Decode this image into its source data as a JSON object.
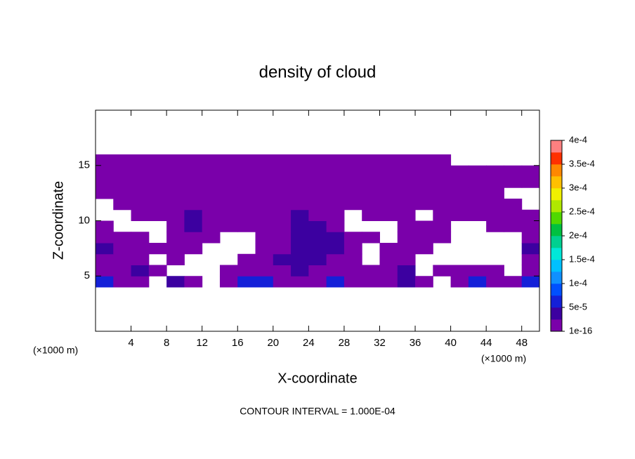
{
  "chart_data": {
    "type": "contour",
    "title": "density of cloud",
    "x_label": "X-coordinate",
    "y_label": "Z-coordinate",
    "x_unit": "(×1000 m)",
    "x_unit_right": "(×1000 m)",
    "footer": "CONTOUR INTERVAL = 1.000E-04",
    "xlim": [
      0,
      50
    ],
    "ylim": [
      0,
      20
    ],
    "xticks": [
      4,
      8,
      12,
      16,
      20,
      24,
      28,
      32,
      36,
      40,
      44,
      48
    ],
    "yticks": [
      5,
      10,
      15
    ],
    "xbins": [
      0,
      2,
      4,
      6,
      8,
      10,
      12,
      14,
      16,
      18,
      20,
      22,
      24,
      26,
      28,
      30,
      32,
      34,
      36,
      38,
      40,
      42,
      44,
      46,
      48,
      50
    ],
    "zbins": [
      4,
      5,
      6,
      7,
      8,
      9,
      10,
      11,
      12,
      13,
      14,
      15,
      16
    ],
    "z": [
      [
        7e-05,
        1e-05,
        1e-05,
        null,
        3e-05,
        1e-05,
        null,
        1e-05,
        7e-05,
        7e-05,
        1e-05,
        1e-05,
        1e-05,
        7e-05,
        1e-05,
        1e-05,
        1e-05,
        3e-05,
        1e-05,
        null,
        1e-05,
        7e-05,
        1e-05,
        1e-05,
        7e-05
      ],
      [
        1e-05,
        1e-05,
        3e-05,
        1e-05,
        null,
        null,
        null,
        1e-05,
        1e-05,
        1e-05,
        1e-05,
        3e-05,
        1e-05,
        1e-05,
        1e-05,
        1e-05,
        1e-05,
        3e-05,
        null,
        1e-05,
        1e-05,
        1e-05,
        1e-05,
        null,
        1e-05
      ],
      [
        1e-05,
        1e-05,
        1e-05,
        null,
        1e-05,
        null,
        null,
        null,
        1e-05,
        1e-05,
        3e-05,
        3e-05,
        3e-05,
        1e-05,
        1e-05,
        null,
        1e-05,
        1e-05,
        null,
        null,
        null,
        null,
        null,
        null,
        1e-05
      ],
      [
        3e-05,
        1e-05,
        1e-05,
        1e-05,
        1e-05,
        1e-05,
        null,
        null,
        null,
        1e-05,
        1e-05,
        3e-05,
        3e-05,
        3e-05,
        1e-05,
        null,
        1e-05,
        1e-05,
        1e-05,
        null,
        null,
        null,
        null,
        null,
        3e-05
      ],
      [
        1e-05,
        1e-05,
        1e-05,
        null,
        1e-05,
        1e-05,
        1e-05,
        null,
        null,
        1e-05,
        1e-05,
        3e-05,
        3e-05,
        3e-05,
        1e-05,
        1e-05,
        null,
        1e-05,
        1e-05,
        1e-05,
        null,
        null,
        null,
        null,
        1e-05
      ],
      [
        1e-05,
        null,
        null,
        null,
        1e-05,
        3e-05,
        1e-05,
        1e-05,
        1e-05,
        1e-05,
        1e-05,
        3e-05,
        3e-05,
        1e-05,
        null,
        null,
        null,
        1e-05,
        1e-05,
        1e-05,
        null,
        null,
        1e-05,
        1e-05,
        1e-05
      ],
      [
        null,
        null,
        1e-05,
        1e-05,
        1e-05,
        3e-05,
        1e-05,
        1e-05,
        1e-05,
        1e-05,
        1e-05,
        3e-05,
        1e-05,
        1e-05,
        null,
        1e-05,
        1e-05,
        1e-05,
        null,
        1e-05,
        1e-05,
        1e-05,
        1e-05,
        1e-05,
        1e-05
      ],
      [
        null,
        1e-05,
        1e-05,
        1e-05,
        1e-05,
        1e-05,
        1e-05,
        1e-05,
        1e-05,
        1e-05,
        1e-05,
        1e-05,
        1e-05,
        1e-05,
        1e-05,
        1e-05,
        1e-05,
        1e-05,
        1e-05,
        1e-05,
        1e-05,
        1e-05,
        1e-05,
        1e-05,
        null
      ],
      [
        1e-05,
        1e-05,
        1e-05,
        1e-05,
        1e-05,
        1e-05,
        1e-05,
        1e-05,
        1e-05,
        1e-05,
        1e-05,
        1e-05,
        1e-05,
        1e-05,
        1e-05,
        1e-05,
        1e-05,
        1e-05,
        1e-05,
        1e-05,
        1e-05,
        1e-05,
        1e-05,
        null,
        null
      ],
      [
        1e-05,
        1e-05,
        1e-05,
        1e-05,
        1e-05,
        1e-05,
        1e-05,
        1e-05,
        1e-05,
        1e-05,
        1e-05,
        1e-05,
        1e-05,
        1e-05,
        1e-05,
        1e-05,
        1e-05,
        1e-05,
        1e-05,
        1e-05,
        1e-05,
        1e-05,
        1e-05,
        1e-05,
        1e-05
      ],
      [
        1e-05,
        1e-05,
        1e-05,
        1e-05,
        1e-05,
        1e-05,
        1e-05,
        1e-05,
        1e-05,
        1e-05,
        1e-05,
        1e-05,
        1e-05,
        1e-05,
        1e-05,
        1e-05,
        1e-05,
        1e-05,
        1e-05,
        1e-05,
        1e-05,
        1e-05,
        1e-05,
        1e-05,
        1e-05
      ],
      [
        1e-05,
        1e-05,
        1e-05,
        1e-05,
        1e-05,
        1e-05,
        1e-05,
        1e-05,
        1e-05,
        1e-05,
        1e-05,
        1e-05,
        1e-05,
        1e-05,
        1e-05,
        1e-05,
        1e-05,
        1e-05,
        1e-05,
        1e-05,
        null,
        null,
        null,
        null,
        null
      ]
    ],
    "colorbar_lim": [
      1e-16,
      0.0004
    ],
    "colorbar_ticks": [
      {
        "value": 1e-16,
        "label": "1e-16"
      },
      {
        "value": 5e-05,
        "label": "5e-5"
      },
      {
        "value": 0.0001,
        "label": "1e-4"
      },
      {
        "value": 0.00015,
        "label": "1.5e-4"
      },
      {
        "value": 0.0002,
        "label": "2e-4"
      },
      {
        "value": 0.00025,
        "label": "2.5e-4"
      },
      {
        "value": 0.0003,
        "label": "3e-4"
      },
      {
        "value": 0.00035,
        "label": "3.5e-4"
      },
      {
        "value": 0.0004,
        "label": "4e-4"
      }
    ],
    "colors": [
      "#7a00aa",
      "#3c00a0",
      "#1420d8",
      "#0050ff",
      "#1090ff",
      "#00c0ff",
      "#00e8d8",
      "#00d090",
      "#00c040",
      "#50d800",
      "#b0e800",
      "#f0f000",
      "#ffc000",
      "#ff8800",
      "#ff3000",
      "#ff8080"
    ]
  }
}
